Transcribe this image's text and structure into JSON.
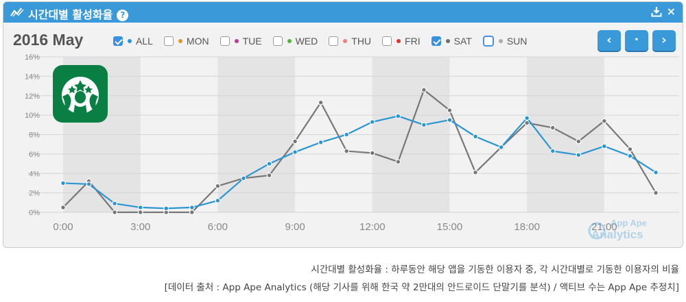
{
  "header": {
    "title": "시간대별 활성화율",
    "help_icon": "?",
    "download_icon": "download-icon",
    "close_icon": "×"
  },
  "date": "2016 May",
  "nav": {
    "prev": "‹",
    "now": "•",
    "next": "›"
  },
  "legend": [
    {
      "label": "ALL",
      "color": "#2a95d3",
      "checked": true
    },
    {
      "label": "MON",
      "color": "#e0962a",
      "checked": false
    },
    {
      "label": "TUE",
      "color": "#c0399a",
      "checked": false
    },
    {
      "label": "WED",
      "color": "#54b236",
      "checked": false
    },
    {
      "label": "THU",
      "color": "#f07f7f",
      "checked": false
    },
    {
      "label": "FRI",
      "color": "#d8382b",
      "checked": false
    },
    {
      "label": "SAT",
      "color": "#6e6e6e",
      "checked": true
    },
    {
      "label": "SUN",
      "color": "#aaaaaa",
      "checked": false
    }
  ],
  "watermark": {
    "line1": "App Ape",
    "line2": "Analytics"
  },
  "caption": {
    "line1": "시간대별 활성화율 : 하루동안 해당 앱을 기동한 이용자 중, 각 시간대별로 기동한 이용자의 비율",
    "line2": "[데이터 출처 : App Ape Analytics (해당 기사를 위해 한국 약 2만대의 안드로이드 단말기를 분석) / 액티브 수는 App Ape 추정치]"
  },
  "chart_data": {
    "type": "line",
    "x": [
      0,
      1,
      2,
      3,
      4,
      5,
      6,
      7,
      8,
      9,
      10,
      11,
      12,
      13,
      14,
      15,
      16,
      17,
      18,
      19,
      20,
      21,
      22,
      23
    ],
    "xticks": [
      {
        "value": 0,
        "label": "0:00"
      },
      {
        "value": 3,
        "label": "3:00"
      },
      {
        "value": 6,
        "label": "6:00"
      },
      {
        "value": 9,
        "label": "9:00"
      },
      {
        "value": 12,
        "label": "12:00"
      },
      {
        "value": 15,
        "label": "15:00"
      },
      {
        "value": 18,
        "label": "18:00"
      },
      {
        "value": 21,
        "label": "21:00"
      }
    ],
    "yticks": [
      {
        "value": 0,
        "label": "0%"
      },
      {
        "value": 2,
        "label": "2%"
      },
      {
        "value": 4,
        "label": "4%"
      },
      {
        "value": 6,
        "label": "6%"
      },
      {
        "value": 8,
        "label": "8%"
      },
      {
        "value": 10,
        "label": "10%"
      },
      {
        "value": 12,
        "label": "12%"
      },
      {
        "value": 14,
        "label": "14%"
      },
      {
        "value": 16,
        "label": "16%"
      }
    ],
    "ylim": [
      0,
      16
    ],
    "xlim": [
      0,
      24
    ],
    "series": [
      {
        "name": "ALL",
        "color": "#2a95d3",
        "values": [
          3.0,
          2.9,
          0.9,
          0.5,
          0.4,
          0.5,
          1.2,
          3.5,
          5.0,
          6.2,
          7.2,
          8.0,
          9.3,
          9.9,
          9.0,
          9.5,
          7.8,
          6.7,
          9.7,
          6.3,
          5.9,
          6.8,
          5.8,
          4.1
        ]
      },
      {
        "name": "SAT",
        "color": "#777777",
        "values": [
          0.5,
          3.2,
          0.0,
          0.0,
          0.0,
          0.0,
          2.7,
          3.5,
          3.8,
          7.3,
          11.3,
          6.3,
          6.1,
          5.2,
          12.6,
          10.5,
          4.1,
          6.7,
          9.2,
          8.7,
          7.3,
          9.4,
          6.5,
          2.0
        ]
      }
    ],
    "grid": true
  }
}
